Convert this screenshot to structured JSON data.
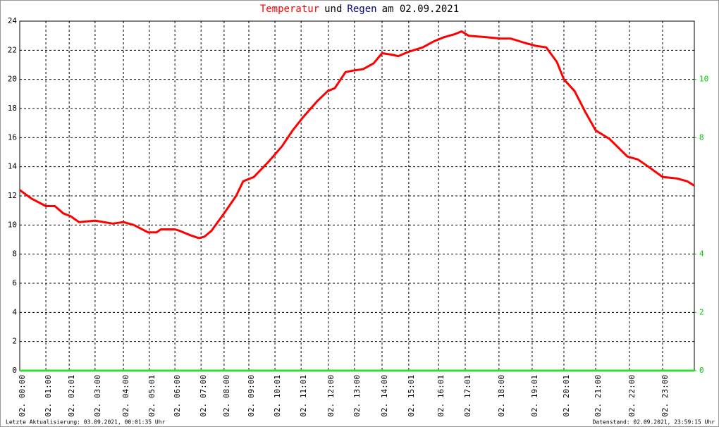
{
  "chart_data": {
    "type": "line",
    "title": [
      {
        "text": "Temperatur",
        "color": "#ff0000"
      },
      {
        "text": "und",
        "color": "#000000"
      },
      {
        "text": "Regen",
        "color": "#000080"
      },
      {
        "text": "am 02.09.2021",
        "color": "#000000"
      }
    ],
    "footer_left": "Letzte Aktualisierung: 03.09.2021, 00:01:35 Uhr",
    "footer_right": "Datenstand: 02.09.2021, 23:59:15 Uhr",
    "xlim": [
      0,
      24
    ],
    "xticks": [
      {
        "value": 0,
        "label": "02. 00:00"
      },
      {
        "value": 0.93,
        "label": "02. 01:00"
      },
      {
        "value": 1.76,
        "label": "02. 02:01"
      },
      {
        "value": 2.68,
        "label": "02. 03:00"
      },
      {
        "value": 3.69,
        "label": "02. 04:00"
      },
      {
        "value": 4.61,
        "label": "02. 05:01"
      },
      {
        "value": 5.52,
        "label": "02. 06:00"
      },
      {
        "value": 6.45,
        "label": "02. 07:00"
      },
      {
        "value": 7.27,
        "label": "02. 08:00"
      },
      {
        "value": 8.15,
        "label": "02. 09:00"
      },
      {
        "value": 9.08,
        "label": "02. 10:01"
      },
      {
        "value": 10.01,
        "label": "02. 11:01"
      },
      {
        "value": 10.98,
        "label": "02. 12:00"
      },
      {
        "value": 11.91,
        "label": "02. 13:00"
      },
      {
        "value": 12.89,
        "label": "02. 14:00"
      },
      {
        "value": 13.84,
        "label": "02. 15:01"
      },
      {
        "value": 14.9,
        "label": "02. 16:01"
      },
      {
        "value": 15.85,
        "label": "02. 17:01"
      },
      {
        "value": 17.05,
        "label": "02. 18:00"
      },
      {
        "value": 18.23,
        "label": "02. 19:01"
      },
      {
        "value": 19.36,
        "label": "02. 20:01"
      },
      {
        "value": 20.49,
        "label": "02. 21:00"
      },
      {
        "value": 21.69,
        "label": "02. 22:00"
      },
      {
        "value": 22.87,
        "label": "02. 23:00"
      }
    ],
    "ylim": [
      0,
      24
    ],
    "yticks": [
      0,
      2,
      4,
      6,
      8,
      10,
      12,
      14,
      16,
      18,
      20,
      22,
      24
    ],
    "y2lim": [
      0,
      12
    ],
    "y2ticks": [
      0,
      2,
      4,
      8,
      10
    ],
    "y2color": "#00cc00",
    "grid": true,
    "series": [
      {
        "name": "Temperatur",
        "color": "#ff0000",
        "x": [
          0,
          0.43,
          0.93,
          1.25,
          1.55,
          1.81,
          2.11,
          2.68,
          3.31,
          3.69,
          4.06,
          4.56,
          4.87,
          5.02,
          5.52,
          5.69,
          6.07,
          6.37,
          6.57,
          6.82,
          7.27,
          7.7,
          7.95,
          8.33,
          8.83,
          9.33,
          9.71,
          10.08,
          10.58,
          10.96,
          11.21,
          11.59,
          11.84,
          12.21,
          12.59,
          12.89,
          13.22,
          13.47,
          13.84,
          14.34,
          14.72,
          15.1,
          15.47,
          15.72,
          15.97,
          16.6,
          17.1,
          17.48,
          17.98,
          18.36,
          18.73,
          19.11,
          19.36,
          19.74,
          20.11,
          20.49,
          20.99,
          21.62,
          21.99,
          22.37,
          22.87,
          23.37,
          23.75,
          24
        ],
        "values": [
          12.4,
          11.8,
          11.3,
          11.3,
          10.8,
          10.6,
          10.2,
          10.3,
          10.1,
          10.2,
          10.0,
          9.5,
          9.5,
          9.7,
          9.7,
          9.6,
          9.3,
          9.1,
          9.2,
          9.6,
          10.8,
          12.0,
          13.0,
          13.3,
          14.3,
          15.4,
          16.5,
          17.4,
          18.5,
          19.2,
          19.4,
          20.5,
          20.6,
          20.7,
          21.1,
          21.8,
          21.7,
          21.6,
          21.9,
          22.2,
          22.6,
          22.9,
          23.1,
          23.3,
          23.0,
          22.9,
          22.8,
          22.8,
          22.5,
          22.3,
          22.2,
          21.2,
          20.0,
          19.2,
          17.8,
          16.5,
          15.9,
          14.7,
          14.5,
          14.0,
          13.3,
          13.2,
          13.0,
          12.7
        ]
      },
      {
        "name": "Regen",
        "color": "#33dd33",
        "axis": "y2",
        "x": [
          0,
          24
        ],
        "values": [
          0,
          0
        ]
      }
    ]
  }
}
